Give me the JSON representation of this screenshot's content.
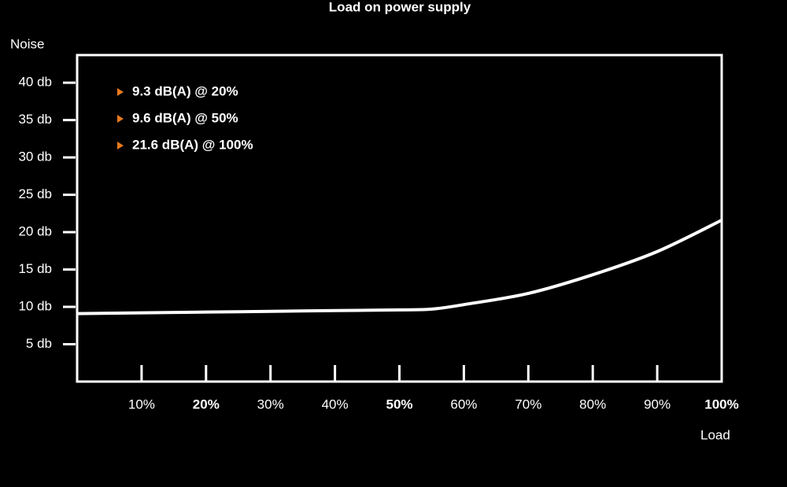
{
  "chart_data": {
    "type": "line",
    "title": "Load on power supply",
    "y_label": "Noise",
    "x_label": "Load",
    "x": [
      0,
      10,
      20,
      30,
      40,
      50,
      55,
      60,
      70,
      80,
      90,
      100
    ],
    "series": [
      {
        "color": "#ffffff",
        "values": [
          9.1,
          9.2,
          9.3,
          9.4,
          9.5,
          9.6,
          9.7,
          10.3,
          11.8,
          14.3,
          17.4,
          21.6
        ]
      }
    ],
    "xlim": [
      0,
      100
    ],
    "ylim": [
      0,
      43.7
    ],
    "xticks": [
      {
        "value": 10,
        "label": "10%"
      },
      {
        "value": 20,
        "label": "20%",
        "bold": true
      },
      {
        "value": 30,
        "label": "30%"
      },
      {
        "value": 40,
        "label": "40%"
      },
      {
        "value": 50,
        "label": "50%",
        "bold": true
      },
      {
        "value": 60,
        "label": "60%"
      },
      {
        "value": 70,
        "label": "70%"
      },
      {
        "value": 80,
        "label": "80%"
      },
      {
        "value": 90,
        "label": "90%"
      },
      {
        "value": 100,
        "label": "100%",
        "bold": true
      }
    ],
    "yticks": [
      {
        "value": 5,
        "label": "5 db"
      },
      {
        "value": 10,
        "label": "10 db"
      },
      {
        "value": 15,
        "label": "15 db"
      },
      {
        "value": 20,
        "label": "20 db"
      },
      {
        "value": 25,
        "label": "25 db"
      },
      {
        "value": 30,
        "label": "30 db"
      },
      {
        "value": 35,
        "label": "35 db"
      },
      {
        "value": 40,
        "label": "40 db"
      }
    ],
    "grid": false,
    "annotations": [
      "9.3 dB(A) @ 20%",
      "9.6 dB(A) @ 50%",
      "21.6 dB(A) @ 100%"
    ],
    "annotation_marker_color": "#e87a1e"
  }
}
